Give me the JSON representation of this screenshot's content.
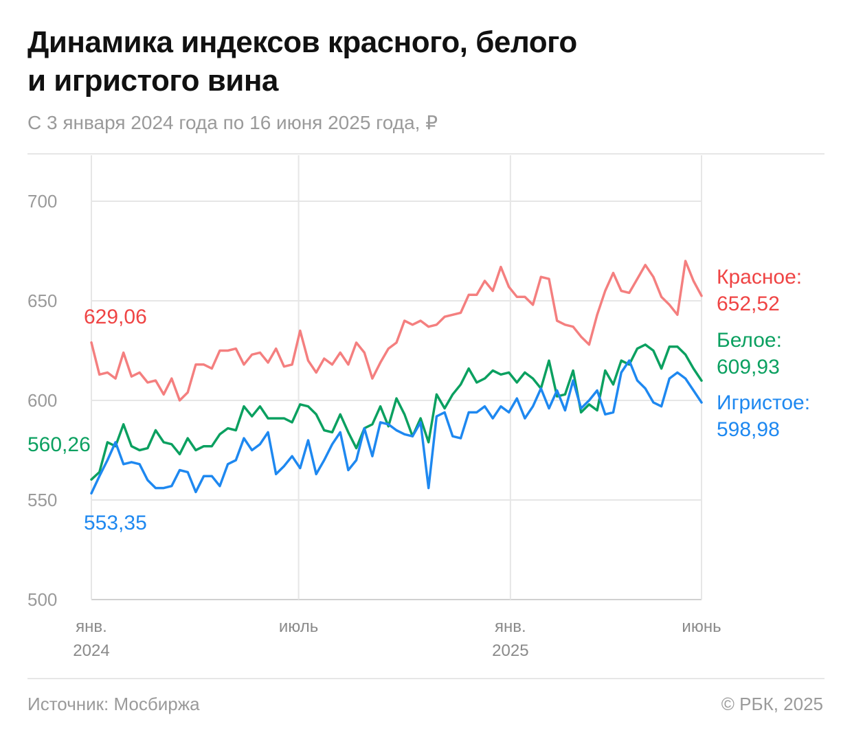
{
  "header": {
    "title_line1": "Динамика индексов красного, белого",
    "title_line2": "и игристого вина",
    "subtitle": "С 3 января 2024 года по 16 июня 2025 года, ₽"
  },
  "footer": {
    "source": "Источник: Мосбиржа",
    "copyright": "© РБК, 2025"
  },
  "chart_data": {
    "type": "line",
    "ylim": [
      500,
      710
    ],
    "y_ticks": [
      "700",
      "650",
      "600",
      "550",
      "500"
    ],
    "y_tick_values": [
      700,
      650,
      600,
      550,
      500
    ],
    "x_ticks": [
      {
        "line1": "янв.",
        "line2": "2024",
        "date": "2024-01-03"
      },
      {
        "line1": "июль",
        "line2": "",
        "date": "2024-07-01"
      },
      {
        "line1": "янв.",
        "line2": "2025",
        "date": "2025-01-01"
      },
      {
        "line1": "июнь",
        "line2": "",
        "date": "2025-06-16"
      }
    ],
    "x_start": "2024-01-03",
    "x_end": "2025-06-16",
    "grid": true,
    "start_labels": {
      "red": "629,06",
      "white": "560,26",
      "sparkling": "553,35"
    },
    "end_labels": {
      "red": {
        "name": "Красное:",
        "value": "652,52"
      },
      "white": {
        "name": "Белое:",
        "value": "609,93"
      },
      "sparkling": {
        "name": "Игристое:",
        "value": "598,98"
      }
    },
    "colors": {
      "red": "#f47f7f",
      "red_text": "#ef4444",
      "white": "#0ba060",
      "sparkling": "#1e88f0",
      "grid": "#e6e6e6"
    },
    "series": [
      {
        "key": "red",
        "values": [
          629.06,
          613,
          614,
          611,
          624,
          612,
          614,
          609,
          610,
          603,
          611,
          600,
          604,
          618,
          618,
          616,
          625,
          625,
          626,
          618,
          623,
          624,
          619,
          626,
          617,
          618,
          635,
          620,
          614,
          621,
          618,
          624,
          618,
          629,
          624,
          611,
          619,
          626,
          629,
          640,
          638,
          640,
          637,
          638,
          642,
          643,
          644,
          653,
          653,
          660,
          655,
          667,
          657,
          652,
          652,
          648,
          662,
          661,
          640,
          638,
          637,
          632,
          628,
          643,
          655,
          664,
          655,
          654,
          661,
          668,
          662,
          652,
          648,
          643,
          670,
          660,
          652.52
        ]
      },
      {
        "key": "white",
        "values": [
          560.26,
          564,
          579,
          577,
          588,
          577,
          575,
          576,
          585,
          579,
          578,
          573,
          581,
          575,
          577,
          577,
          583,
          586,
          585,
          597,
          592,
          597,
          591,
          591,
          591,
          589,
          598,
          597,
          593,
          585,
          584,
          593,
          584,
          576,
          586,
          588,
          597,
          587,
          601,
          593,
          582,
          591,
          579,
          603,
          596,
          603,
          608,
          616,
          609,
          611,
          615,
          613,
          614,
          609,
          614,
          611,
          606,
          620,
          602,
          603,
          615,
          594,
          598,
          595,
          615,
          608,
          620,
          618,
          626,
          628,
          625,
          616,
          627,
          627,
          623,
          616,
          609.93
        ]
      },
      {
        "key": "sparkling",
        "values": [
          553.35,
          562,
          570,
          579,
          568,
          569,
          568,
          560,
          556,
          556,
          557,
          565,
          564,
          554,
          562,
          562,
          557,
          568,
          570,
          581,
          575,
          578,
          584,
          563,
          567,
          572,
          566,
          580,
          563,
          570,
          578,
          584,
          565,
          570,
          586,
          572,
          589,
          588,
          585,
          583,
          582,
          589,
          556,
          592,
          594,
          582,
          581,
          594,
          594,
          597,
          591,
          597,
          594,
          601,
          591,
          597,
          606,
          596,
          605,
          595,
          610,
          596,
          600,
          605,
          593,
          594,
          614,
          620,
          610,
          606,
          599,
          597,
          611,
          614,
          611,
          605,
          598.98
        ]
      }
    ]
  }
}
